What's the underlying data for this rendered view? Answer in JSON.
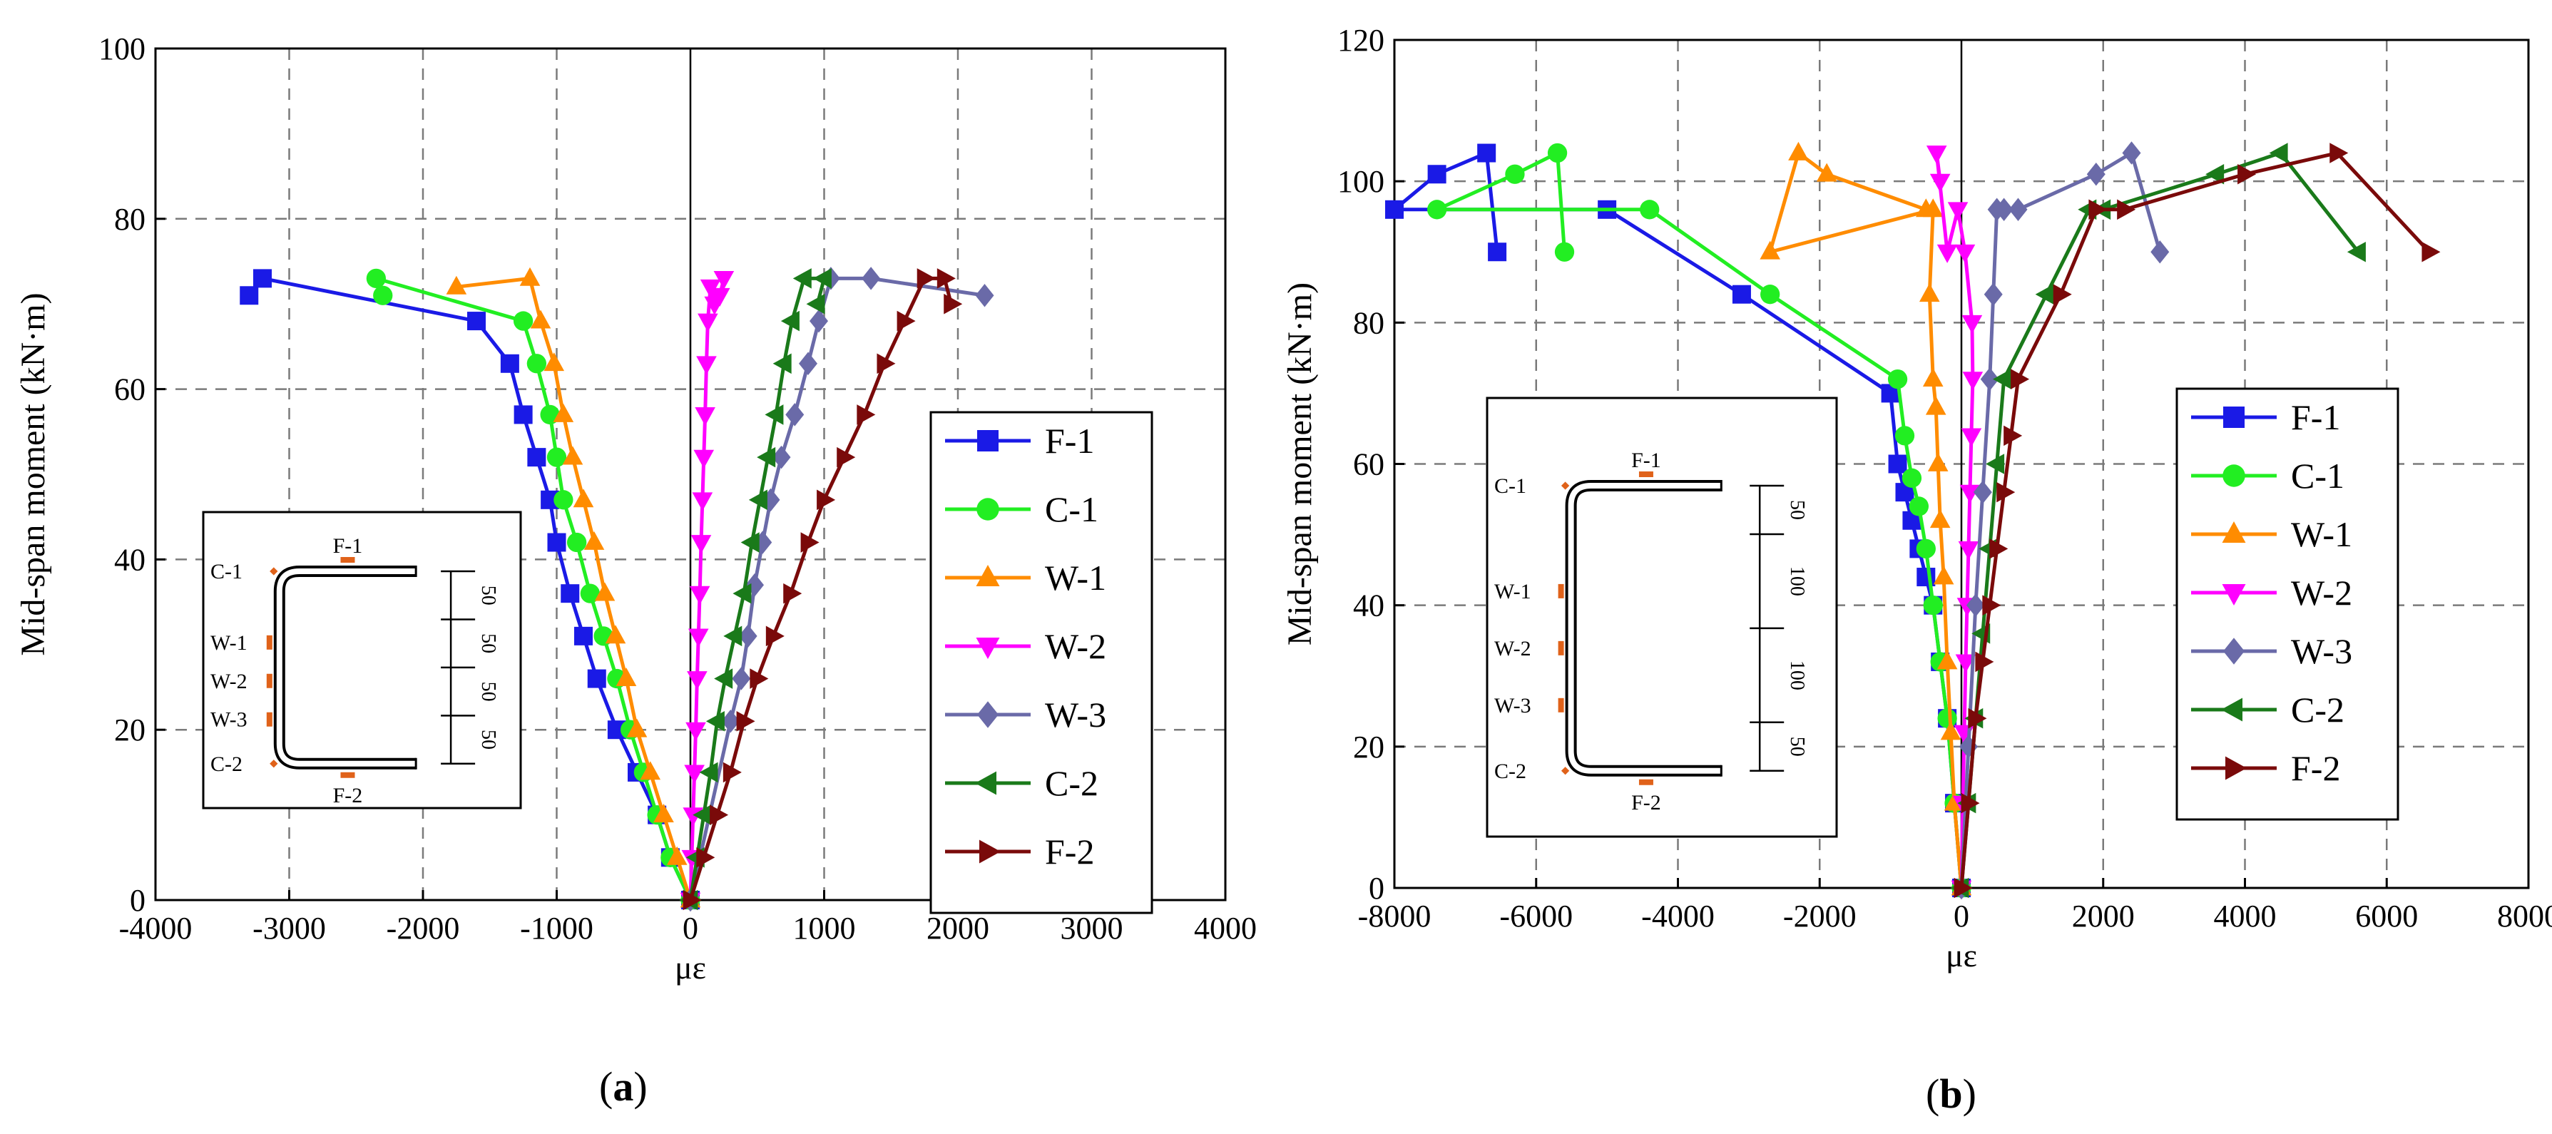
{
  "chart_data": [
    {
      "panel": "(a)",
      "panel_letter": "a",
      "type": "line",
      "xlabel": "με",
      "ylabel": "Mid-span moment (kN·m)",
      "xlim": [
        -4000,
        4000
      ],
      "ylim": [
        0,
        100
      ],
      "xticks": [
        -4000,
        -3000,
        -2000,
        -1000,
        0,
        1000,
        2000,
        3000,
        4000
      ],
      "yticks": [
        0,
        20,
        40,
        60,
        80,
        100
      ],
      "grid": true,
      "legend": "right",
      "series": [
        {
          "name": "F-1",
          "color": "#1a1ae6",
          "marker": "square",
          "x": [
            0,
            -150,
            -250,
            -400,
            -550,
            -700,
            -800,
            -900,
            -1000,
            -1050,
            -1150,
            -1250,
            -1350,
            -1600,
            -3200,
            -3300
          ],
          "y": [
            0,
            5,
            10,
            15,
            20,
            26,
            31,
            36,
            42,
            47,
            52,
            57,
            63,
            68,
            73,
            71
          ]
        },
        {
          "name": "C-1",
          "color": "#22ee22",
          "marker": "circle",
          "x": [
            0,
            -150,
            -250,
            -350,
            -450,
            -550,
            -650,
            -750,
            -850,
            -950,
            -1000,
            -1050,
            -1150,
            -1250,
            -2350,
            -2300
          ],
          "y": [
            0,
            5,
            10,
            15,
            20,
            26,
            31,
            36,
            42,
            47,
            52,
            57,
            63,
            68,
            73,
            71
          ]
        },
        {
          "name": "W-1",
          "color": "#ff8c00",
          "marker": "triangle-up",
          "x": [
            0,
            -100,
            -200,
            -300,
            -400,
            -480,
            -560,
            -640,
            -720,
            -800,
            -880,
            -950,
            -1020,
            -1120,
            -1200,
            -1750
          ],
          "y": [
            0,
            5,
            10,
            15,
            20,
            26,
            31,
            36,
            42,
            47,
            52,
            57,
            63,
            68,
            73,
            72
          ]
        },
        {
          "name": "W-2",
          "color": "#ff00ff",
          "marker": "triangle-down",
          "x": [
            0,
            10,
            20,
            30,
            40,
            50,
            60,
            70,
            80,
            90,
            100,
            110,
            120,
            130,
            150,
            180,
            220,
            250
          ],
          "y": [
            0,
            5,
            10,
            15,
            20,
            26,
            31,
            36,
            42,
            47,
            52,
            57,
            63,
            68,
            72,
            70,
            71,
            73
          ]
        },
        {
          "name": "W-3",
          "color": "#6a6aa8",
          "marker": "diamond",
          "x": [
            0,
            300,
            380,
            430,
            480,
            540,
            600,
            680,
            780,
            880,
            960,
            1050,
            1350,
            2200
          ],
          "y": [
            0,
            21,
            26,
            31,
            37,
            42,
            47,
            52,
            57,
            63,
            68,
            73,
            73,
            71
          ]
        },
        {
          "name": "C-2",
          "color": "#1a7a1a",
          "marker": "triangle-left",
          "x": [
            0,
            50,
            100,
            150,
            200,
            260,
            330,
            400,
            460,
            520,
            580,
            640,
            700,
            760,
            850,
            1000,
            950
          ],
          "y": [
            0,
            5,
            10,
            15,
            21,
            26,
            31,
            36,
            42,
            47,
            52,
            57,
            63,
            68,
            73,
            73,
            70
          ]
        },
        {
          "name": "F-2",
          "color": "#7a0a0a",
          "marker": "triangle-right",
          "x": [
            0,
            100,
            200,
            300,
            400,
            500,
            620,
            750,
            880,
            1000,
            1150,
            1300,
            1450,
            1600,
            1750,
            1900,
            1950
          ],
          "y": [
            0,
            5,
            10,
            15,
            21,
            26,
            31,
            36,
            42,
            47,
            52,
            57,
            63,
            68,
            73,
            73,
            70
          ]
        }
      ],
      "inset": {
        "labels": [
          "C-1",
          "F-1",
          "W-1",
          "W-2",
          "W-3",
          "C-2",
          "F-2"
        ],
        "dims": [
          "50",
          "50",
          "50",
          "50"
        ]
      }
    },
    {
      "panel": "(b)",
      "panel_letter": "b",
      "type": "line",
      "xlabel": "με",
      "ylabel": "Mid-span moment (kN·m)",
      "xlim": [
        -8000,
        8000
      ],
      "ylim": [
        0,
        120
      ],
      "xticks": [
        -8000,
        -6000,
        -4000,
        -2000,
        0,
        2000,
        4000,
        6000,
        8000
      ],
      "yticks": [
        0,
        20,
        40,
        60,
        80,
        100,
        120
      ],
      "grid": true,
      "legend": "right",
      "series": [
        {
          "name": "F-1",
          "color": "#1a1ae6",
          "marker": "square",
          "x": [
            0,
            -100,
            -200,
            -300,
            -400,
            -500,
            -600,
            -700,
            -800,
            -900,
            -1000,
            -3100,
            -5000,
            -8000,
            -7400,
            -6700,
            -6550
          ],
          "y": [
            0,
            12,
            24,
            32,
            40,
            44,
            48,
            52,
            56,
            60,
            70,
            84,
            96,
            96,
            101,
            104,
            90
          ]
        },
        {
          "name": "C-1",
          "color": "#22ee22",
          "marker": "circle",
          "x": [
            0,
            -100,
            -200,
            -300,
            -400,
            -500,
            -600,
            -700,
            -800,
            -900,
            -2700,
            -4400,
            -7400,
            -6300,
            -5700,
            -5600
          ],
          "y": [
            0,
            12,
            24,
            32,
            40,
            48,
            54,
            58,
            64,
            72,
            84,
            96,
            96,
            101,
            104,
            90
          ]
        },
        {
          "name": "W-1",
          "color": "#ff8c00",
          "marker": "triangle-up",
          "x": [
            0,
            -100,
            -150,
            -200,
            -250,
            -300,
            -330,
            -360,
            -400,
            -450,
            -400,
            -2700,
            -2300,
            -1900,
            -500
          ],
          "y": [
            0,
            12,
            22,
            32,
            44,
            52,
            60,
            68,
            72,
            84,
            96,
            90,
            104,
            101,
            96
          ]
        },
        {
          "name": "W-2",
          "color": "#ff00ff",
          "marker": "triangle-down",
          "x": [
            0,
            20,
            40,
            60,
            80,
            100,
            120,
            140,
            160,
            150,
            50,
            -50,
            -200,
            -350,
            -300
          ],
          "y": [
            0,
            12,
            22,
            32,
            40,
            48,
            56,
            64,
            72,
            80,
            90,
            96,
            90,
            104,
            100
          ]
        },
        {
          "name": "W-3",
          "color": "#6a6aa8",
          "marker": "diamond",
          "x": [
            0,
            100,
            200,
            300,
            400,
            450,
            500,
            600,
            800,
            1900,
            2400,
            2800
          ],
          "y": [
            0,
            20,
            40,
            56,
            72,
            84,
            96,
            96,
            96,
            101,
            104,
            90
          ]
        },
        {
          "name": "C-2",
          "color": "#1a7a1a",
          "marker": "triangle-left",
          "x": [
            0,
            100,
            200,
            300,
            400,
            500,
            600,
            1200,
            1800,
            2000,
            3600,
            4500,
            5600
          ],
          "y": [
            0,
            12,
            24,
            36,
            48,
            60,
            72,
            84,
            96,
            96,
            101,
            104,
            90
          ]
        },
        {
          "name": "F-2",
          "color": "#7a0a0a",
          "marker": "triangle-right",
          "x": [
            0,
            100,
            200,
            300,
            400,
            500,
            600,
            700,
            800,
            1400,
            1900,
            2300,
            4000,
            5300,
            6600
          ],
          "y": [
            0,
            12,
            24,
            32,
            40,
            48,
            56,
            64,
            72,
            84,
            96,
            96,
            101,
            104,
            90
          ]
        }
      ],
      "inset": {
        "labels": [
          "C-1",
          "F-1",
          "W-1",
          "W-2",
          "W-3",
          "C-2",
          "F-2"
        ],
        "dims": [
          "50",
          "100",
          "100",
          "50"
        ]
      }
    }
  ]
}
